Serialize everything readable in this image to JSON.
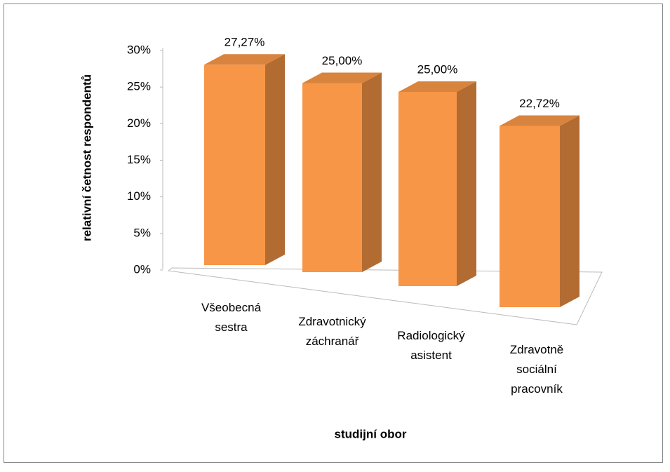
{
  "chart_data": {
    "type": "bar3d",
    "categories": [
      "Všeobecná sestra",
      "Zdravotnický záchranář",
      "Radiologický asistent",
      "Zdravotně sociální pracovník"
    ],
    "values": [
      27.27,
      25,
      25,
      22.72
    ],
    "value_labels": [
      "27,27%",
      "25,00%",
      "25,00%",
      "22,72%"
    ],
    "color": "#f79646",
    "ylim": [
      0,
      30
    ],
    "yticks": [
      {
        "value": 0,
        "label": "0%"
      },
      {
        "value": 5,
        "label": "5%"
      },
      {
        "value": 10,
        "label": "10%"
      },
      {
        "value": 15,
        "label": "15%"
      },
      {
        "value": 20,
        "label": "20%"
      },
      {
        "value": 25,
        "label": "25%"
      },
      {
        "value": 30,
        "label": "30%"
      }
    ],
    "y_label": "relativní četnost respondentů",
    "x_label": "studijní obor"
  }
}
